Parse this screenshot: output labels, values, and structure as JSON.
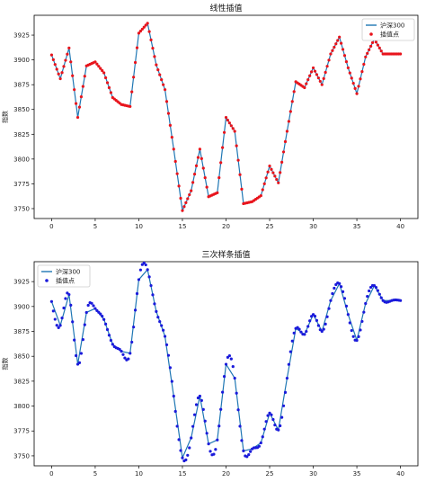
{
  "chart_data": [
    {
      "type": "line",
      "title": "线性插值",
      "xlabel": "",
      "ylabel": "指数",
      "xlim": [
        -2,
        42
      ],
      "ylim": [
        3740,
        3945
      ],
      "xticks": [
        0,
        5,
        10,
        15,
        20,
        25,
        30,
        35,
        40
      ],
      "yticks": [
        3750,
        3775,
        3800,
        3825,
        3850,
        3875,
        3900,
        3925
      ],
      "legend_position": "top-right",
      "series": [
        {
          "name": "沪深300",
          "kind": "line",
          "color": "#1f77b4",
          "x": [
            0,
            1,
            2,
            3,
            4,
            5,
            6,
            7,
            8,
            9,
            10,
            11,
            12,
            13,
            14,
            15,
            16,
            17,
            18,
            19,
            20,
            21,
            22,
            23,
            24,
            25,
            26,
            27,
            28,
            29,
            30,
            31,
            32,
            33,
            34,
            35,
            36,
            37,
            38,
            39,
            40
          ],
          "y": [
            3905,
            3881,
            3912,
            3842,
            3894,
            3898,
            3887,
            3862,
            3855,
            3853,
            3927,
            3937,
            3895,
            3870,
            3810,
            3748,
            3768,
            3810,
            3762,
            3766,
            3842,
            3828,
            3755,
            3757,
            3763,
            3793,
            3776,
            3828,
            3878,
            3872,
            3892,
            3875,
            3906,
            3923,
            3892,
            3866,
            3903,
            3921,
            3906,
            3906,
            3906
          ]
        },
        {
          "name": "插值点",
          "kind": "scatter",
          "color": "#e8141c",
          "method": "linear",
          "points_per_unit": 5
        }
      ]
    },
    {
      "type": "line",
      "title": "三次样条插值",
      "xlabel": "",
      "ylabel": "指数",
      "xlim": [
        -2,
        42
      ],
      "ylim": [
        3740,
        3945
      ],
      "xticks": [
        0,
        5,
        10,
        15,
        20,
        25,
        30,
        35,
        40
      ],
      "yticks": [
        3750,
        3775,
        3800,
        3825,
        3850,
        3875,
        3900,
        3925
      ],
      "legend_position": "top-left",
      "series": [
        {
          "name": "沪深300",
          "kind": "line",
          "color": "#1f77b4",
          "x": [
            0,
            1,
            2,
            3,
            4,
            5,
            6,
            7,
            8,
            9,
            10,
            11,
            12,
            13,
            14,
            15,
            16,
            17,
            18,
            19,
            20,
            21,
            22,
            23,
            24,
            25,
            26,
            27,
            28,
            29,
            30,
            31,
            32,
            33,
            34,
            35,
            36,
            37,
            38,
            39,
            40
          ],
          "y": [
            3905,
            3881,
            3912,
            3842,
            3894,
            3898,
            3887,
            3862,
            3855,
            3853,
            3927,
            3937,
            3895,
            3870,
            3810,
            3748,
            3768,
            3810,
            3762,
            3766,
            3842,
            3828,
            3755,
            3757,
            3763,
            3793,
            3776,
            3828,
            3878,
            3872,
            3892,
            3875,
            3906,
            3923,
            3892,
            3866,
            3903,
            3921,
            3906,
            3906,
            3906
          ]
        },
        {
          "name": "插值点",
          "kind": "scatter",
          "color": "#1a1adb",
          "method": "cubic-spline",
          "points_per_unit": 5
        }
      ]
    }
  ]
}
